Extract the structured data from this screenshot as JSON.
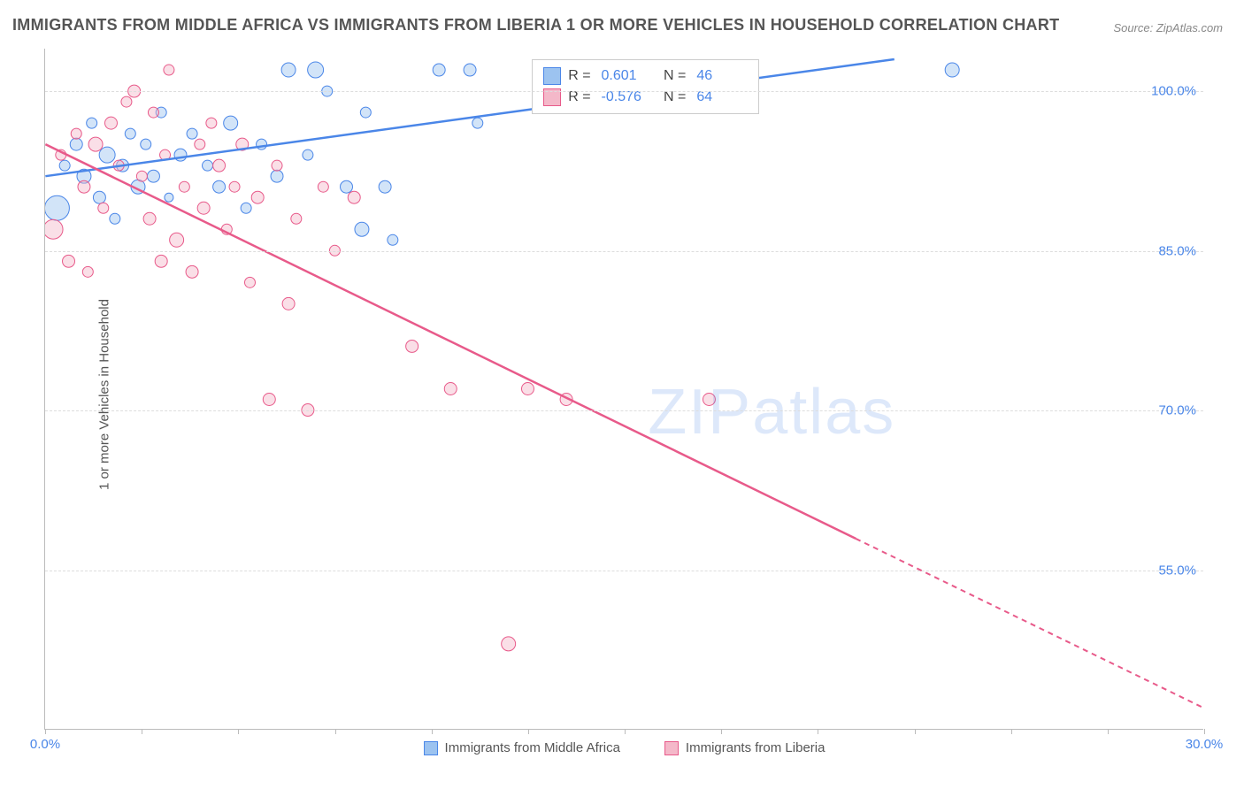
{
  "title": "IMMIGRANTS FROM MIDDLE AFRICA VS IMMIGRANTS FROM LIBERIA 1 OR MORE VEHICLES IN HOUSEHOLD CORRELATION CHART",
  "source": "Source: ZipAtlas.com",
  "y_axis_label": "1 or more Vehicles in Household",
  "watermark": "ZIPatlas",
  "chart": {
    "type": "scatter",
    "xlim": [
      0,
      30
    ],
    "ylim": [
      40,
      104
    ],
    "x_ticks": [
      0,
      30
    ],
    "x_tick_labels": [
      "0.0%",
      "30.0%"
    ],
    "x_minor_ticks": [
      2.5,
      5,
      7.5,
      10,
      12.5,
      15,
      17.5,
      20,
      22.5,
      25,
      27.5
    ],
    "y_ticks": [
      55,
      70,
      85,
      100
    ],
    "y_tick_labels": [
      "55.0%",
      "70.0%",
      "85.0%",
      "100.0%"
    ],
    "background_color": "#ffffff",
    "grid_color": "#dddddd",
    "axis_color": "#bbbbbb",
    "tick_label_color": "#4a86e8",
    "series": [
      {
        "name": "Immigrants from Middle Africa",
        "color_fill": "#9cc3f0",
        "color_stroke": "#4a86e8",
        "fill_opacity": 0.45,
        "r_stat": "0.601",
        "n_stat": "46",
        "trend": {
          "x1": 0,
          "y1": 92,
          "x2": 22,
          "y2": 103,
          "dashed_after": null
        },
        "points": [
          {
            "x": 0.3,
            "y": 89,
            "r": 14
          },
          {
            "x": 0.5,
            "y": 93,
            "r": 6
          },
          {
            "x": 0.8,
            "y": 95,
            "r": 7
          },
          {
            "x": 1.0,
            "y": 92,
            "r": 8
          },
          {
            "x": 1.2,
            "y": 97,
            "r": 6
          },
          {
            "x": 1.4,
            "y": 90,
            "r": 7
          },
          {
            "x": 1.6,
            "y": 94,
            "r": 9
          },
          {
            "x": 1.8,
            "y": 88,
            "r": 6
          },
          {
            "x": 2.0,
            "y": 93,
            "r": 7
          },
          {
            "x": 2.2,
            "y": 96,
            "r": 6
          },
          {
            "x": 2.4,
            "y": 91,
            "r": 8
          },
          {
            "x": 2.6,
            "y": 95,
            "r": 6
          },
          {
            "x": 2.8,
            "y": 92,
            "r": 7
          },
          {
            "x": 3.0,
            "y": 98,
            "r": 6
          },
          {
            "x": 3.2,
            "y": 90,
            "r": 5
          },
          {
            "x": 3.5,
            "y": 94,
            "r": 7
          },
          {
            "x": 3.8,
            "y": 96,
            "r": 6
          },
          {
            "x": 4.2,
            "y": 93,
            "r": 6
          },
          {
            "x": 4.5,
            "y": 91,
            "r": 7
          },
          {
            "x": 4.8,
            "y": 97,
            "r": 8
          },
          {
            "x": 5.2,
            "y": 89,
            "r": 6
          },
          {
            "x": 5.6,
            "y": 95,
            "r": 6
          },
          {
            "x": 6.0,
            "y": 92,
            "r": 7
          },
          {
            "x": 6.3,
            "y": 102,
            "r": 8
          },
          {
            "x": 6.8,
            "y": 94,
            "r": 6
          },
          {
            "x": 7.0,
            "y": 102,
            "r": 9
          },
          {
            "x": 7.3,
            "y": 100,
            "r": 6
          },
          {
            "x": 7.8,
            "y": 91,
            "r": 7
          },
          {
            "x": 8.2,
            "y": 87,
            "r": 8
          },
          {
            "x": 8.3,
            "y": 98,
            "r": 6
          },
          {
            "x": 8.8,
            "y": 91,
            "r": 7
          },
          {
            "x": 9.0,
            "y": 86,
            "r": 6
          },
          {
            "x": 10.2,
            "y": 102,
            "r": 7
          },
          {
            "x": 11.0,
            "y": 102,
            "r": 7
          },
          {
            "x": 11.2,
            "y": 97,
            "r": 6
          },
          {
            "x": 23.5,
            "y": 102,
            "r": 8
          }
        ]
      },
      {
        "name": "Immigrants from Liberia",
        "color_fill": "#f4b8c9",
        "color_stroke": "#e85a8a",
        "fill_opacity": 0.45,
        "r_stat": "-0.576",
        "n_stat": "64",
        "trend": {
          "x1": 0,
          "y1": 95,
          "x2": 30,
          "y2": 42,
          "dashed_after": 21
        },
        "points": [
          {
            "x": 0.2,
            "y": 87,
            "r": 11
          },
          {
            "x": 0.4,
            "y": 94,
            "r": 6
          },
          {
            "x": 0.6,
            "y": 84,
            "r": 7
          },
          {
            "x": 0.8,
            "y": 96,
            "r": 6
          },
          {
            "x": 1.0,
            "y": 91,
            "r": 7
          },
          {
            "x": 1.1,
            "y": 83,
            "r": 6
          },
          {
            "x": 1.3,
            "y": 95,
            "r": 8
          },
          {
            "x": 1.5,
            "y": 89,
            "r": 6
          },
          {
            "x": 1.7,
            "y": 97,
            "r": 7
          },
          {
            "x": 1.9,
            "y": 93,
            "r": 6
          },
          {
            "x": 2.1,
            "y": 99,
            "r": 6
          },
          {
            "x": 2.3,
            "y": 100,
            "r": 7
          },
          {
            "x": 2.5,
            "y": 92,
            "r": 6
          },
          {
            "x": 2.7,
            "y": 88,
            "r": 7
          },
          {
            "x": 2.8,
            "y": 98,
            "r": 6
          },
          {
            "x": 3.0,
            "y": 84,
            "r": 7
          },
          {
            "x": 3.1,
            "y": 94,
            "r": 6
          },
          {
            "x": 3.2,
            "y": 102,
            "r": 6
          },
          {
            "x": 3.4,
            "y": 86,
            "r": 8
          },
          {
            "x": 3.6,
            "y": 91,
            "r": 6
          },
          {
            "x": 3.8,
            "y": 83,
            "r": 7
          },
          {
            "x": 4.0,
            "y": 95,
            "r": 6
          },
          {
            "x": 4.1,
            "y": 89,
            "r": 7
          },
          {
            "x": 4.3,
            "y": 97,
            "r": 6
          },
          {
            "x": 4.5,
            "y": 93,
            "r": 7
          },
          {
            "x": 4.7,
            "y": 87,
            "r": 6
          },
          {
            "x": 4.9,
            "y": 91,
            "r": 6
          },
          {
            "x": 5.1,
            "y": 95,
            "r": 7
          },
          {
            "x": 5.3,
            "y": 82,
            "r": 6
          },
          {
            "x": 5.5,
            "y": 90,
            "r": 7
          },
          {
            "x": 5.8,
            "y": 71,
            "r": 7
          },
          {
            "x": 6.0,
            "y": 93,
            "r": 6
          },
          {
            "x": 6.3,
            "y": 80,
            "r": 7
          },
          {
            "x": 6.5,
            "y": 88,
            "r": 6
          },
          {
            "x": 6.8,
            "y": 70,
            "r": 7
          },
          {
            "x": 7.2,
            "y": 91,
            "r": 6
          },
          {
            "x": 7.5,
            "y": 85,
            "r": 6
          },
          {
            "x": 8.0,
            "y": 90,
            "r": 7
          },
          {
            "x": 9.5,
            "y": 76,
            "r": 7
          },
          {
            "x": 10.5,
            "y": 72,
            "r": 7
          },
          {
            "x": 12.0,
            "y": 48,
            "r": 8
          },
          {
            "x": 12.5,
            "y": 72,
            "r": 7
          },
          {
            "x": 13.5,
            "y": 71,
            "r": 7
          },
          {
            "x": 17.2,
            "y": 71,
            "r": 7
          }
        ]
      }
    ]
  },
  "legend_box": {
    "left_pct": 42,
    "top_pct": 1.5
  }
}
